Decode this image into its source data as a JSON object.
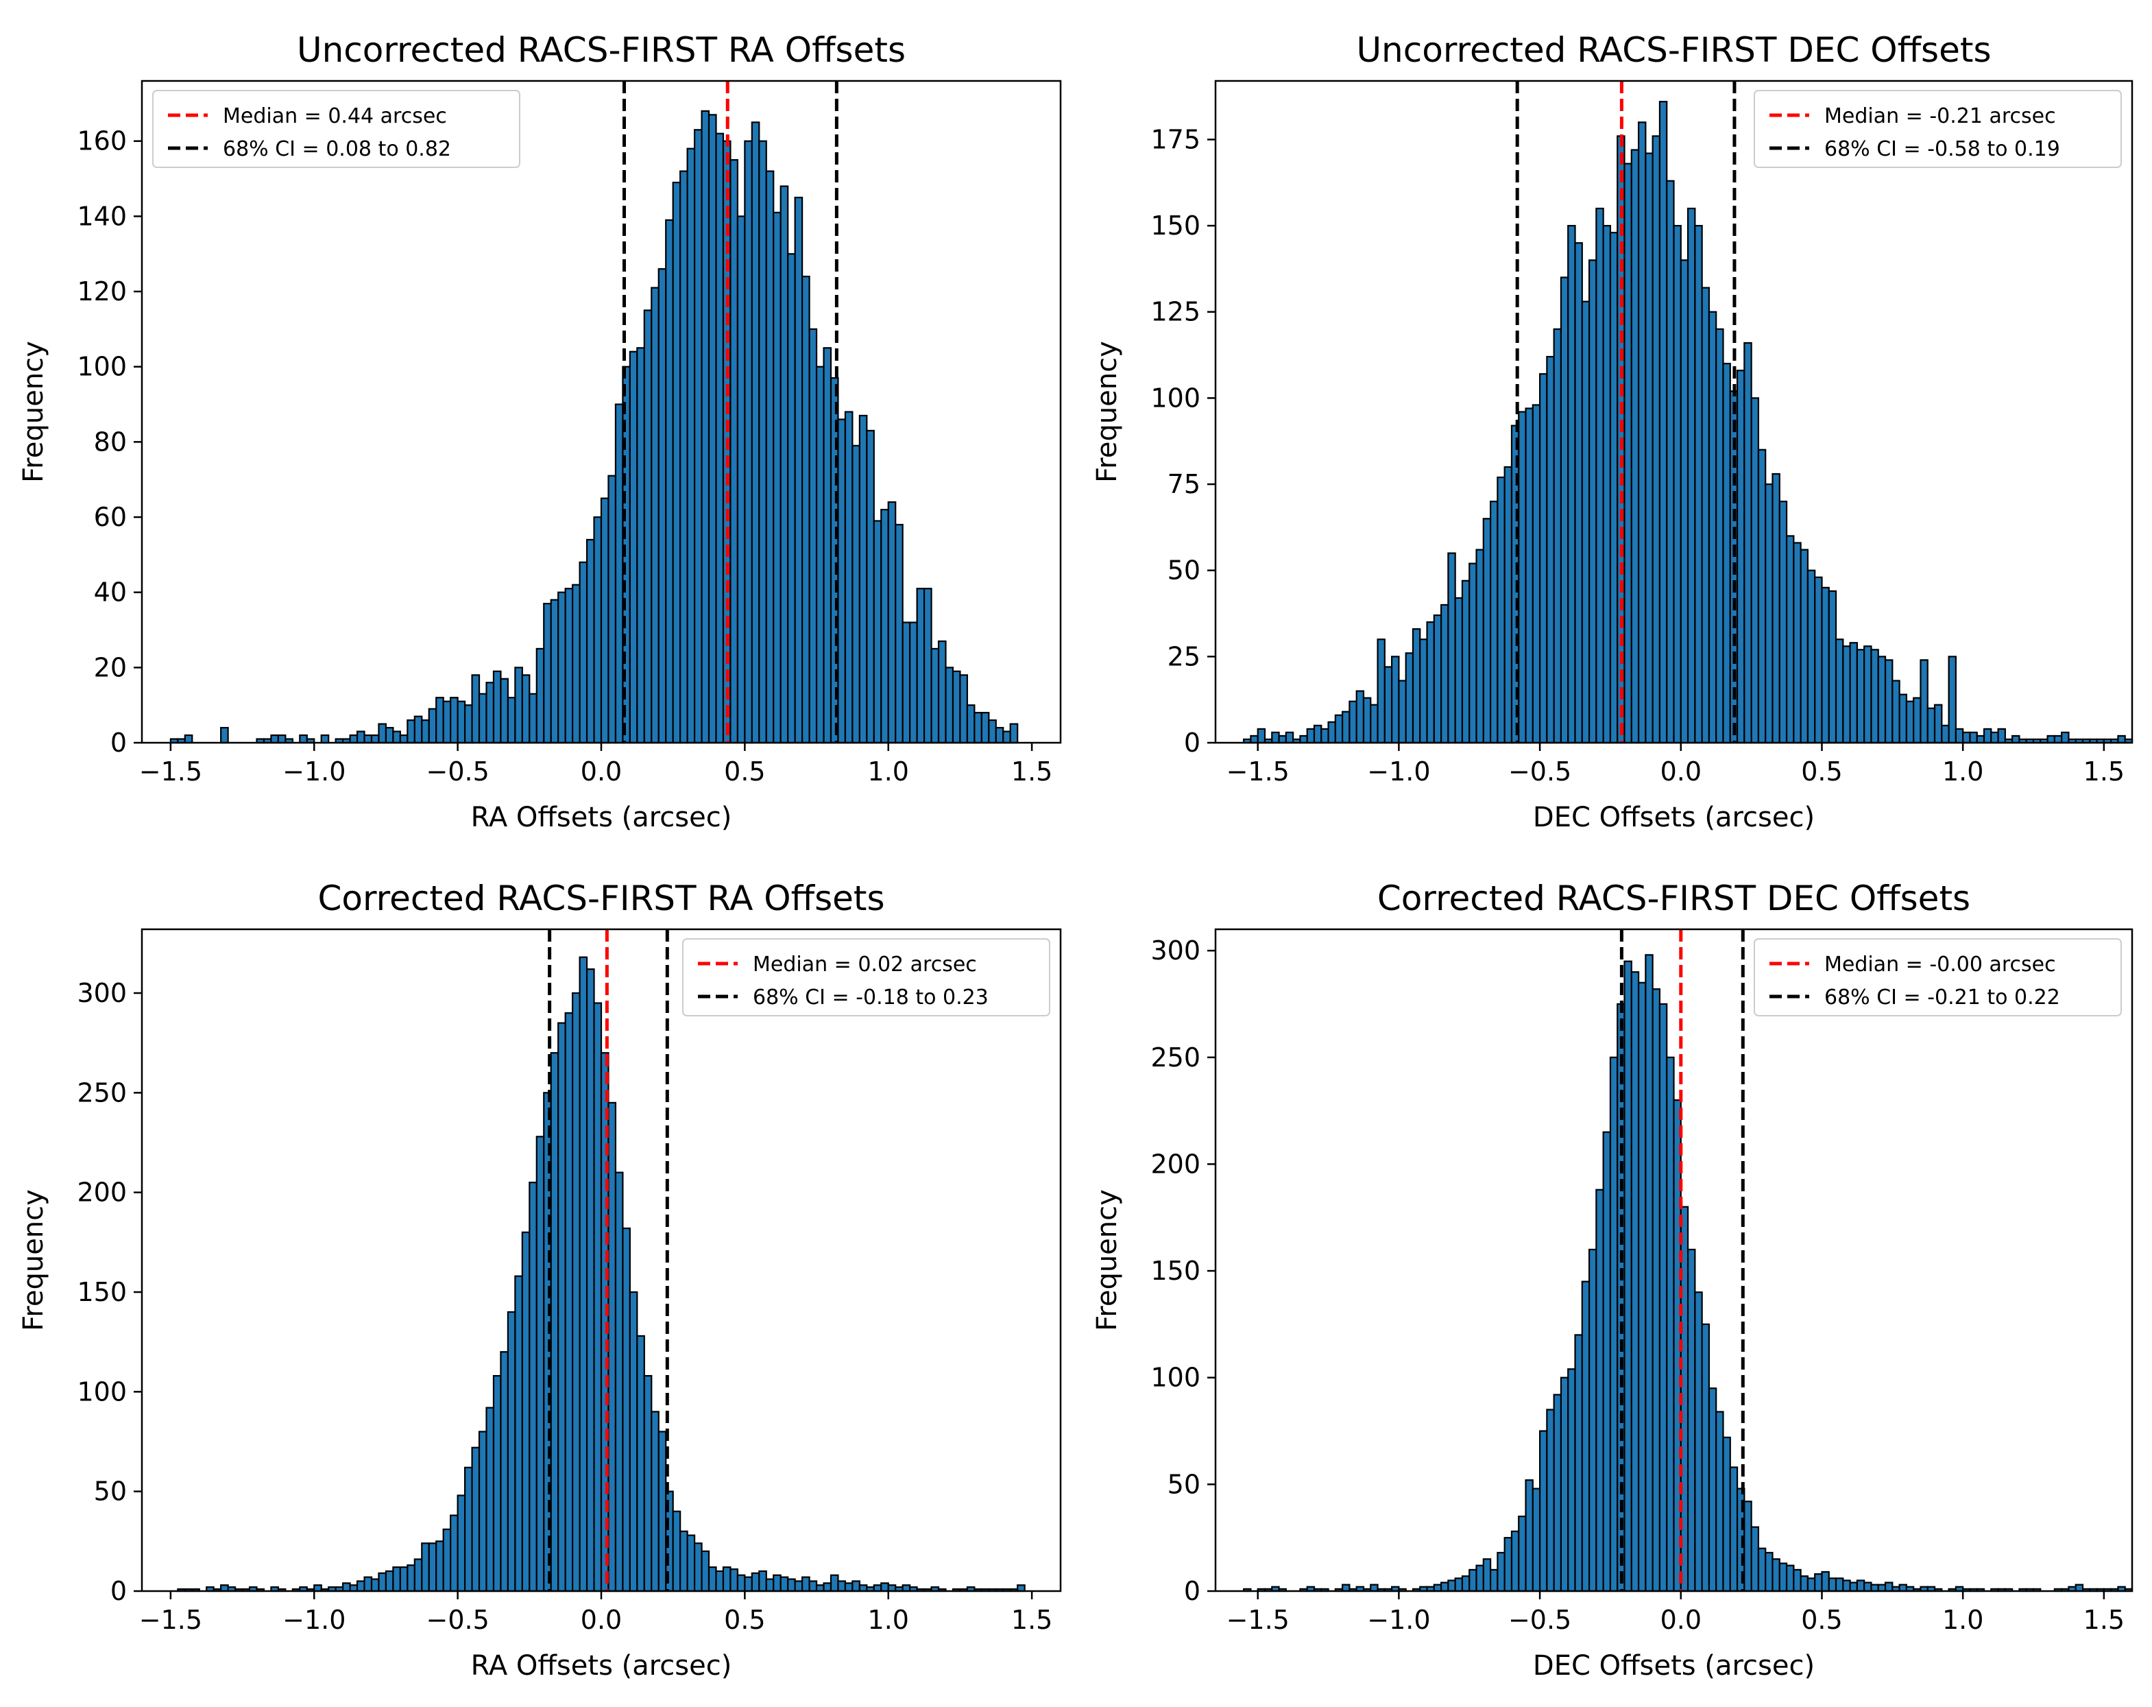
{
  "chart_data": [
    {
      "type": "bar",
      "title": "Uncorrected RACS-FIRST RA Offsets",
      "xlabel": "RA Offsets (arcsec)",
      "ylabel": "Frequency",
      "xlim": [
        -1.6,
        1.6
      ],
      "ylim": [
        0,
        176
      ],
      "xticks": [
        -1.5,
        -1.0,
        -0.5,
        0.0,
        0.5,
        1.0,
        1.5
      ],
      "xtick_labels": [
        "−1.5",
        "−1.0",
        "−0.5",
        "0.0",
        "0.5",
        "1.0",
        "1.5"
      ],
      "yticks": [
        0,
        20,
        40,
        60,
        80,
        100,
        120,
        140,
        160
      ],
      "ytick_labels": [
        "0",
        "20",
        "40",
        "60",
        "80",
        "100",
        "120",
        "140",
        "160"
      ],
      "bin_start": -1.5,
      "bin_width": 0.025,
      "counts": [
        1,
        1,
        2,
        0,
        0,
        0,
        0,
        4,
        0,
        0,
        0,
        0,
        1,
        1,
        2,
        2,
        1,
        0,
        2,
        1,
        0,
        2,
        0,
        1,
        1,
        2,
        3,
        2,
        2,
        5,
        4,
        3,
        2,
        6,
        7,
        6,
        9,
        12,
        11,
        12,
        11,
        10,
        18,
        13,
        16,
        19,
        17,
        12,
        20,
        18,
        13,
        25,
        37,
        38,
        40,
        41,
        42,
        48,
        54,
        60,
        65,
        71,
        90,
        100,
        104,
        105,
        115,
        121,
        126,
        139,
        149,
        152,
        158,
        163,
        168,
        167,
        162,
        160,
        155,
        140,
        160,
        165,
        160,
        152,
        141,
        148,
        130,
        145,
        124,
        110,
        100,
        105,
        97,
        86,
        88,
        79,
        87,
        83,
        59,
        62,
        64,
        58,
        32,
        32,
        41,
        41,
        25,
        27,
        20,
        19,
        18,
        10,
        8,
        8,
        6,
        4,
        3,
        5
      ]
    },
    {
      "type": "bar",
      "title": "Uncorrected RACS-FIRST DEC Offsets",
      "xlabel": "DEC Offsets (arcsec)",
      "ylabel": "Frequency",
      "xlim": [
        -1.65,
        1.6
      ],
      "ylim": [
        0,
        192
      ],
      "xticks": [
        -1.5,
        -1.0,
        -0.5,
        0.0,
        0.5,
        1.0,
        1.5
      ],
      "xtick_labels": [
        "−1.5",
        "−1.0",
        "−0.5",
        "0.0",
        "0.5",
        "1.0",
        "1.5"
      ],
      "yticks": [
        0,
        25,
        50,
        75,
        100,
        125,
        150,
        175
      ],
      "ytick_labels": [
        "0",
        "25",
        "50",
        "75",
        "100",
        "125",
        "150",
        "175"
      ],
      "bin_start": -1.55,
      "bin_width": 0.025,
      "counts": [
        1,
        2,
        4,
        1,
        3,
        2,
        3,
        1,
        2,
        4,
        5,
        4,
        6,
        8,
        9,
        12,
        15,
        13,
        11,
        30,
        22,
        25,
        18,
        26,
        33,
        30,
        35,
        37,
        40,
        55,
        42,
        47,
        52,
        56,
        65,
        70,
        77,
        80,
        92,
        96,
        97,
        98,
        107,
        112,
        120,
        135,
        150,
        145,
        128,
        140,
        155,
        150,
        148,
        176,
        168,
        172,
        180,
        171,
        176,
        186,
        163,
        150,
        140,
        155,
        150,
        132,
        125,
        120,
        110,
        102,
        108,
        116,
        100,
        85,
        75,
        78,
        70,
        60,
        58,
        56,
        50,
        48,
        45,
        44,
        30,
        28,
        29,
        27,
        28,
        27,
        25,
        24,
        18,
        14,
        12,
        13,
        24,
        10,
        11,
        5,
        25,
        4,
        3,
        3,
        2,
        4,
        3,
        4,
        1,
        2,
        1,
        1,
        1,
        1,
        2,
        2,
        3,
        1,
        1,
        1,
        1,
        1,
        1,
        1,
        2,
        1
      ]
    },
    {
      "type": "bar",
      "title": "Corrected RACS-FIRST RA Offsets",
      "xlabel": "RA Offsets (arcsec)",
      "ylabel": "Frequency",
      "xlim": [
        -1.6,
        1.6
      ],
      "ylim": [
        0,
        332
      ],
      "xticks": [
        -1.5,
        -1.0,
        -0.5,
        0.0,
        0.5,
        1.0,
        1.5
      ],
      "xtick_labels": [
        "−1.5",
        "−1.0",
        "−0.5",
        "0.0",
        "0.5",
        "1.0",
        "1.5"
      ],
      "yticks": [
        0,
        50,
        100,
        150,
        200,
        250,
        300
      ],
      "ytick_labels": [
        "0",
        "50",
        "100",
        "150",
        "200",
        "250",
        "300"
      ],
      "bin_start": -1.5,
      "bin_width": 0.025,
      "counts": [
        0,
        1,
        1,
        1,
        0,
        2,
        1,
        3,
        2,
        1,
        1,
        2,
        1,
        0,
        2,
        1,
        0,
        1,
        2,
        1,
        3,
        1,
        2,
        2,
        4,
        3,
        5,
        7,
        6,
        9,
        10,
        12,
        12,
        13,
        16,
        24,
        24,
        25,
        31,
        38,
        48,
        62,
        72,
        80,
        92,
        108,
        120,
        140,
        158,
        180,
        205,
        228,
        250,
        270,
        285,
        290,
        300,
        318,
        312,
        295,
        270,
        245,
        210,
        182,
        150,
        128,
        108,
        90,
        80,
        50,
        40,
        30,
        28,
        24,
        20,
        12,
        10,
        12,
        11,
        8,
        7,
        9,
        10,
        6,
        8,
        7,
        6,
        5,
        7,
        5,
        3,
        4,
        8,
        5,
        4,
        5,
        3,
        2,
        3,
        4,
        3,
        2,
        3,
        2,
        1,
        1,
        2,
        1,
        0,
        1,
        1,
        2,
        1,
        1,
        1,
        1,
        1,
        1,
        3
      ]
    },
    {
      "type": "bar",
      "title": "Corrected RACS-FIRST DEC Offsets",
      "xlabel": "DEC Offsets (arcsec)",
      "ylabel": "Frequency",
      "xlim": [
        -1.65,
        1.6
      ],
      "ylim": [
        0,
        310
      ],
      "xticks": [
        -1.5,
        -1.0,
        -0.5,
        0.0,
        0.5,
        1.0,
        1.5
      ],
      "xtick_labels": [
        "−1.5",
        "−1.0",
        "−0.5",
        "0.0",
        "0.5",
        "1.0",
        "1.5"
      ],
      "yticks": [
        0,
        50,
        100,
        150,
        200,
        250,
        300
      ],
      "ytick_labels": [
        "0",
        "50",
        "100",
        "150",
        "200",
        "250",
        "300"
      ],
      "bin_start": -1.55,
      "bin_width": 0.025,
      "counts": [
        1,
        0,
        1,
        1,
        2,
        1,
        0,
        0,
        1,
        2,
        1,
        1,
        0,
        1,
        3,
        1,
        2,
        1,
        3,
        1,
        1,
        2,
        1,
        0,
        1,
        2,
        2,
        3,
        4,
        5,
        6,
        7,
        10,
        12,
        15,
        10,
        18,
        25,
        28,
        35,
        52,
        48,
        75,
        85,
        92,
        100,
        104,
        120,
        145,
        160,
        188,
        215,
        250,
        275,
        295,
        290,
        285,
        298,
        282,
        275,
        250,
        230,
        180,
        160,
        140,
        125,
        95,
        84,
        72,
        58,
        48,
        42,
        30,
        20,
        18,
        15,
        13,
        12,
        10,
        7,
        6,
        8,
        9,
        6,
        6,
        5,
        4,
        5,
        4,
        3,
        3,
        4,
        2,
        3,
        2,
        1,
        2,
        2,
        1,
        0,
        1,
        2,
        1,
        1,
        1,
        0,
        1,
        1,
        1,
        0,
        1,
        1,
        1,
        0,
        0,
        1,
        1,
        2,
        3,
        1,
        1,
        1,
        1,
        1,
        2,
        1
      ]
    }
  ],
  "legends": [
    {
      "median_label": "Median = 0.44 arcsec",
      "ci_label": "68% CI = 0.08 to 0.82",
      "median": 0.44,
      "ci": [
        0.08,
        0.82
      ],
      "placement": "upper-left"
    },
    {
      "median_label": "Median = -0.21 arcsec",
      "ci_label": "68% CI = -0.58 to 0.19",
      "median": -0.21,
      "ci": [
        -0.58,
        0.19
      ],
      "placement": "upper-right"
    },
    {
      "median_label": "Median = 0.02 arcsec",
      "ci_label": "68% CI = -0.18 to 0.23",
      "median": 0.02,
      "ci": [
        -0.18,
        0.23
      ],
      "placement": "upper-right"
    },
    {
      "median_label": "Median = -0.00 arcsec",
      "ci_label": "68% CI = -0.21 to 0.22",
      "median": 0.0,
      "ci": [
        -0.21,
        0.22
      ],
      "placement": "upper-right"
    }
  ],
  "colors": {
    "bar": "#1f77b4",
    "median_line": "#ff0000",
    "ci_line": "#000000"
  }
}
